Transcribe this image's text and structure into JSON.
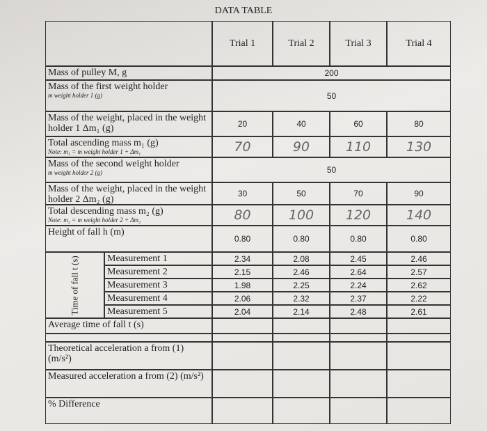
{
  "title": "DATA TABLE",
  "columns": [
    "Trial 1",
    "Trial 2",
    "Trial 3",
    "Trial 4"
  ],
  "rows": [
    {
      "label": "Mass of pulley M, g",
      "merged_value": "200"
    },
    {
      "label": "Mass of the first weight holder",
      "sublabel": "m weight holder 1 (g)",
      "merged_value": "50"
    },
    {
      "label": "Mass of the weight, placed in the weight holder 1 Δm₁ (g)",
      "values": [
        "20",
        "40",
        "60",
        "80"
      ]
    },
    {
      "label": "Total ascending mass m₁ (g)",
      "sublabel": "Note: m₁ = m weight holder 1 + Δm₁",
      "values": [
        "70",
        "90",
        "110",
        "130"
      ],
      "style": "handwritten"
    },
    {
      "label": "Mass of the second weight holder",
      "sublabel": "m weight holder 2 (g)",
      "merged_value": "50"
    },
    {
      "label": "Mass of the weight, placed in the weight holder 2 Δm₂ (g)",
      "values": [
        "30",
        "50",
        "70",
        "90"
      ]
    },
    {
      "label": "Total descending mass m₂ (g)",
      "sublabel": "Note: m₂ = m weight holder 2 + Δm₂",
      "values": [
        "80",
        "100",
        "120",
        "140"
      ],
      "style": "handwritten"
    },
    {
      "label": "Height of fall h (m)",
      "values": [
        "0.80",
        "0.80",
        "0.80",
        "0.80"
      ]
    }
  ],
  "time_of_fall": {
    "label": "Time of fall t (s)",
    "measurements": [
      {
        "label": "Measurement 1",
        "values": [
          "2.34",
          "2.08",
          "2.45",
          "2.46"
        ]
      },
      {
        "label": "Measurement 2",
        "values": [
          "2.15",
          "2.46",
          "2.64",
          "2.57"
        ]
      },
      {
        "label": "Measurement 3",
        "values": [
          "1.98",
          "2.25",
          "2.24",
          "2.62"
        ]
      },
      {
        "label": "Measurement 4",
        "values": [
          "2.06",
          "2.32",
          "2.37",
          "2.22"
        ]
      },
      {
        "label": "Measurement 5",
        "values": [
          "2.04",
          "2.14",
          "2.48",
          "2.61"
        ]
      }
    ]
  },
  "rows_after": [
    {
      "label": "Average time of fall t (s)"
    },
    {
      "label": ""
    },
    {
      "label": "Theoretical acceleration a from (1) (m/s²)"
    },
    {
      "label": "Measured acceleration a from (2) (m/s²)"
    },
    {
      "label": "% Difference"
    }
  ]
}
